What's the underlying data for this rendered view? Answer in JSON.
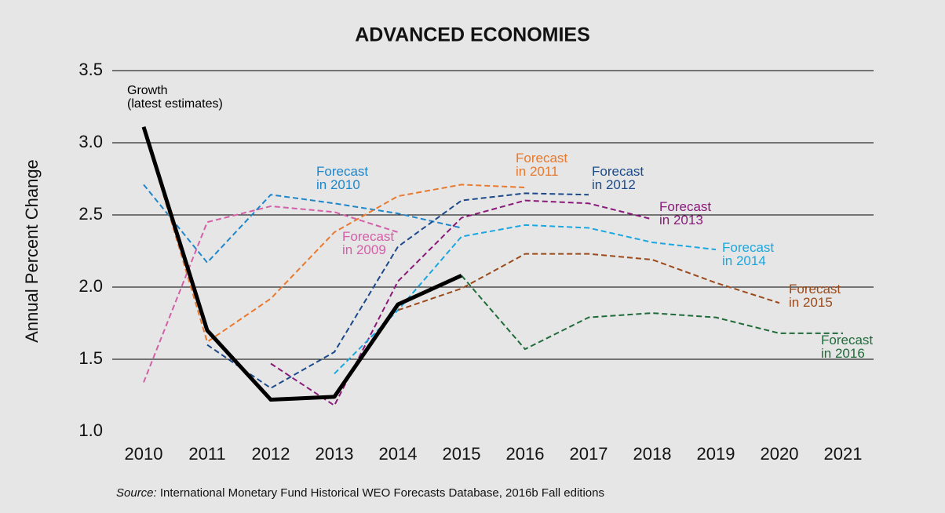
{
  "chart_data": {
    "type": "line",
    "title": "ADVANCED ECONOMIES",
    "y_label": "Annual Percent Change",
    "categories": [
      "2010",
      "2011",
      "2012",
      "2013",
      "2014",
      "2015",
      "2016",
      "2017",
      "2018",
      "2019",
      "2020",
      "2021"
    ],
    "ylim": [
      1.0,
      3.5
    ],
    "yticks": [
      {
        "value": 1.0,
        "label": "1.0"
      },
      1.5,
      {
        "value": 2.0,
        "label": "2.0"
      },
      2.5,
      {
        "value": 3.0,
        "label": "3.0"
      },
      3.5
    ],
    "grid": true,
    "series": [
      {
        "name": "Forecast\nin 2009",
        "color": "#d45fa8",
        "dashed": true,
        "values": [
          1.34,
          2.45,
          2.56,
          2.52,
          2.38,
          null,
          null,
          null,
          null,
          null,
          null,
          null
        ]
      },
      {
        "name": "Forecast\nin 2010",
        "color": "#1f86c9",
        "dashed": true,
        "values": [
          2.71,
          2.17,
          2.64,
          2.58,
          2.51,
          2.41,
          null,
          null,
          null,
          null,
          null,
          null
        ]
      },
      {
        "name": "Forecast\nin 2011",
        "color": "#e8792e",
        "dashed": true,
        "values": [
          3.1,
          1.62,
          1.92,
          2.38,
          2.63,
          2.71,
          2.69,
          null,
          null,
          null,
          null,
          null
        ]
      },
      {
        "name": "Forecast\nin 2012",
        "color": "#1b4a8a",
        "dashed": true,
        "values": [
          null,
          1.6,
          1.3,
          1.55,
          2.28,
          2.6,
          2.65,
          2.64,
          null,
          null,
          null,
          null
        ]
      },
      {
        "name": "Forecast\nin 2013",
        "color": "#8a1a7a",
        "dashed": true,
        "values": [
          null,
          null,
          1.47,
          1.18,
          2.04,
          2.48,
          2.6,
          2.58,
          2.47,
          null,
          null,
          null
        ]
      },
      {
        "name": "Forecast\nin 2014",
        "color": "#1aa7e0",
        "dashed": true,
        "values": [
          null,
          null,
          null,
          1.4,
          1.84,
          2.35,
          2.43,
          2.41,
          2.31,
          2.26,
          null,
          null
        ]
      },
      {
        "name": "Forecast\nin 2015",
        "color": "#9a4a1a",
        "dashed": true,
        "values": [
          null,
          null,
          null,
          null,
          1.84,
          1.99,
          2.23,
          2.23,
          2.19,
          2.03,
          1.89,
          null
        ]
      },
      {
        "name": "Forecast\nin 2016",
        "color": "#1f6b3a",
        "dashed": true,
        "values": [
          null,
          null,
          null,
          null,
          null,
          2.08,
          1.57,
          1.79,
          1.82,
          1.79,
          1.68,
          1.68
        ]
      },
      {
        "name": "Growth\n(latest estimates)",
        "color": "#000000",
        "dashed": false,
        "values": [
          3.11,
          1.7,
          1.22,
          1.24,
          1.88,
          2.08,
          null,
          null,
          null,
          null,
          null,
          null
        ]
      }
    ],
    "source_label": "Source:",
    "source": " International Monetary Fund Historical WEO Forecasts Database, 2016b Fall editions"
  }
}
